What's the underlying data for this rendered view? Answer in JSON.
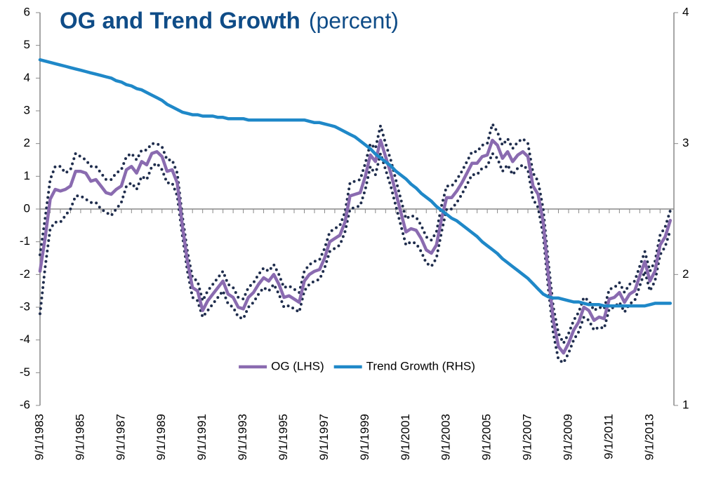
{
  "chart_data": {
    "type": "line",
    "title": "OG and Trend Growth",
    "subtitle": "(percent)",
    "categories": [
      "9/1/1983",
      null,
      null,
      null,
      null,
      null,
      null,
      null,
      "9/1/1985",
      null,
      null,
      null,
      null,
      null,
      null,
      null,
      "9/1/1987",
      null,
      null,
      null,
      null,
      null,
      null,
      null,
      "9/1/1989",
      null,
      null,
      null,
      null,
      null,
      null,
      null,
      "9/1/1991",
      null,
      null,
      null,
      null,
      null,
      null,
      null,
      "9/1/1993",
      null,
      null,
      null,
      null,
      null,
      null,
      null,
      "9/1/1995",
      null,
      null,
      null,
      null,
      null,
      null,
      null,
      "9/1/1997",
      null,
      null,
      null,
      null,
      null,
      null,
      null,
      "9/1/1999",
      null,
      null,
      null,
      null,
      null,
      null,
      null,
      "9/1/2001",
      null,
      null,
      null,
      null,
      null,
      null,
      null,
      "9/1/2003",
      null,
      null,
      null,
      null,
      null,
      null,
      null,
      "9/1/2005",
      null,
      null,
      null,
      null,
      null,
      null,
      null,
      "9/1/2007",
      null,
      null,
      null,
      null,
      null,
      null,
      null,
      "9/1/2009",
      null,
      null,
      null,
      null,
      null,
      null,
      null,
      "9/1/2011",
      null,
      null,
      null,
      null,
      null,
      null,
      null,
      "9/1/2013",
      null,
      null,
      null,
      null
    ],
    "series": [
      {
        "color": "#1f2d4d",
        "style": "dotted",
        "values": [
          -1.4,
          -0.3,
          0.9,
          1.3,
          1.3,
          1.1,
          1.2,
          1.7,
          1.6,
          1.5,
          1.3,
          1.3,
          1.1,
          0.9,
          0.9,
          1.1,
          1.2,
          1.6,
          1.7,
          1.5,
          1.8,
          1.8,
          2.0,
          2.0,
          1.9,
          1.5,
          1.5,
          1.1,
          -0.2,
          -1.3,
          -2.1,
          -2.2,
          -2.8,
          -2.5,
          -2.3,
          -2.1,
          -1.9,
          -2.3,
          -2.4,
          -2.7,
          -2.75,
          -2.4,
          -2.25,
          -2.0,
          -1.8,
          -1.9,
          -1.7,
          -2.0,
          -2.4,
          -2.35,
          -2.45,
          -2.55,
          -1.9,
          -1.7,
          -1.6,
          -1.55,
          -1.2,
          -0.7,
          -0.6,
          -0.5,
          -0.1,
          0.8,
          0.85,
          0.9,
          1.4,
          2.0,
          1.85,
          2.55,
          2.0,
          1.5,
          0.9,
          0.3,
          -0.3,
          -0.2,
          -0.25,
          -0.5,
          -0.85,
          -0.95,
          -0.7,
          0.1,
          0.7,
          0.7,
          0.9,
          1.15,
          1.45,
          1.75,
          1.75,
          1.95,
          2.0,
          2.6,
          2.35,
          1.95,
          2.15,
          1.85,
          2.05,
          2.15,
          2.0,
          1.1,
          0.85,
          0.0,
          -1.6,
          -3.0,
          -3.8,
          -4.1,
          -3.8,
          -3.4,
          -3.15,
          -2.7,
          -2.8,
          -3.1,
          -3.0,
          -3.05,
          -2.45,
          -2.4,
          -2.25,
          -2.55,
          -2.3,
          -2.2,
          -1.75,
          -1.3,
          -1.9,
          -1.6,
          -0.8,
          -0.55,
          -0.05
        ]
      },
      {
        "color": "#1f2d4d",
        "style": "dotted",
        "values": [
          -3.2,
          -1.8,
          -0.6,
          -0.4,
          -0.4,
          -0.2,
          0.0,
          0.4,
          0.4,
          0.3,
          0.2,
          0.2,
          0.0,
          -0.1,
          -0.2,
          0.0,
          0.2,
          0.7,
          0.8,
          0.6,
          1.0,
          0.9,
          1.3,
          1.4,
          1.2,
          0.8,
          0.8,
          0.4,
          -0.8,
          -1.9,
          -2.7,
          -2.8,
          -3.3,
          -3.1,
          -2.9,
          -2.7,
          -2.5,
          -2.9,
          -3.0,
          -3.3,
          -3.35,
          -3.0,
          -2.85,
          -2.6,
          -2.4,
          -2.5,
          -2.3,
          -2.6,
          -3.0,
          -2.95,
          -3.05,
          -3.15,
          -2.5,
          -2.3,
          -2.2,
          -2.15,
          -1.8,
          -1.3,
          -1.2,
          -1.1,
          -0.7,
          0.0,
          0.05,
          0.1,
          0.6,
          1.3,
          1.05,
          1.7,
          1.2,
          0.7,
          0.1,
          -0.5,
          -1.1,
          -1.0,
          -1.05,
          -1.3,
          -1.65,
          -1.75,
          -1.5,
          -0.7,
          0.0,
          0.0,
          0.2,
          0.45,
          0.75,
          1.05,
          1.05,
          1.25,
          1.3,
          1.7,
          1.55,
          1.15,
          1.35,
          1.05,
          1.25,
          1.35,
          1.2,
          0.3,
          0.05,
          -0.8,
          -2.4,
          -3.8,
          -4.6,
          -4.7,
          -4.4,
          -4.0,
          -3.75,
          -3.3,
          -3.4,
          -3.7,
          -3.6,
          -3.65,
          -3.05,
          -3.0,
          -2.85,
          -3.15,
          -2.9,
          -2.8,
          -2.35,
          -1.9,
          -2.5,
          -2.2,
          -1.4,
          -1.15,
          -0.65
        ]
      },
      {
        "name": "OG (LHS)",
        "color": "#8a6bb0",
        "values": [
          -1.9,
          -0.9,
          0.3,
          0.6,
          0.55,
          0.6,
          0.7,
          1.15,
          1.15,
          1.1,
          0.85,
          0.9,
          0.7,
          0.5,
          0.45,
          0.6,
          0.7,
          1.2,
          1.3,
          1.1,
          1.45,
          1.35,
          1.7,
          1.75,
          1.6,
          1.15,
          1.2,
          0.8,
          -0.5,
          -1.6,
          -2.4,
          -2.5,
          -3.1,
          -2.8,
          -2.6,
          -2.4,
          -2.2,
          -2.6,
          -2.7,
          -3.0,
          -3.05,
          -2.7,
          -2.55,
          -2.3,
          -2.1,
          -2.2,
          -2.0,
          -2.3,
          -2.7,
          -2.65,
          -2.75,
          -2.85,
          -2.2,
          -2.0,
          -1.9,
          -1.85,
          -1.5,
          -1.0,
          -0.9,
          -0.8,
          -0.4,
          0.4,
          0.45,
          0.5,
          1.0,
          1.65,
          1.45,
          2.1,
          1.6,
          1.1,
          0.5,
          -0.1,
          -0.7,
          -0.6,
          -0.65,
          -0.9,
          -1.25,
          -1.35,
          -1.1,
          -0.3,
          0.35,
          0.35,
          0.55,
          0.8,
          1.1,
          1.4,
          1.4,
          1.6,
          1.65,
          2.1,
          1.95,
          1.55,
          1.75,
          1.45,
          1.65,
          1.75,
          1.6,
          0.7,
          0.45,
          -0.4,
          -2.0,
          -3.4,
          -4.2,
          -4.4,
          -4.1,
          -3.7,
          -3.45,
          -3.0,
          -3.1,
          -3.4,
          -3.3,
          -3.35,
          -2.75,
          -2.7,
          -2.55,
          -2.85,
          -2.6,
          -2.5,
          -2.05,
          -1.6,
          -2.2,
          -1.9,
          -1.1,
          -0.85,
          -0.35
        ]
      },
      {
        "name": "Trend Growth (RHS)",
        "color": "#1f88c8",
        "axis": "y2",
        "values": [
          3.64,
          3.63,
          3.62,
          3.61,
          3.6,
          3.59,
          3.58,
          3.57,
          3.56,
          3.55,
          3.54,
          3.53,
          3.52,
          3.51,
          3.5,
          3.48,
          3.47,
          3.45,
          3.44,
          3.42,
          3.41,
          3.39,
          3.37,
          3.35,
          3.33,
          3.3,
          3.28,
          3.26,
          3.24,
          3.23,
          3.22,
          3.22,
          3.21,
          3.21,
          3.21,
          3.2,
          3.2,
          3.19,
          3.19,
          3.19,
          3.19,
          3.18,
          3.18,
          3.18,
          3.18,
          3.18,
          3.18,
          3.18,
          3.18,
          3.18,
          3.18,
          3.18,
          3.18,
          3.17,
          3.16,
          3.16,
          3.15,
          3.14,
          3.13,
          3.11,
          3.09,
          3.07,
          3.05,
          3.02,
          2.99,
          2.96,
          2.92,
          2.89,
          2.86,
          2.83,
          2.79,
          2.76,
          2.73,
          2.69,
          2.66,
          2.62,
          2.59,
          2.56,
          2.52,
          2.49,
          2.46,
          2.43,
          2.41,
          2.38,
          2.35,
          2.32,
          2.29,
          2.25,
          2.22,
          2.19,
          2.16,
          2.12,
          2.09,
          2.06,
          2.03,
          2.0,
          1.97,
          1.93,
          1.89,
          1.85,
          1.83,
          1.82,
          1.82,
          1.81,
          1.8,
          1.79,
          1.79,
          1.78,
          1.77,
          1.77,
          1.77,
          1.76,
          1.76,
          1.76,
          1.76,
          1.76,
          1.76,
          1.76,
          1.76,
          1.76,
          1.77,
          1.78,
          1.78,
          1.78,
          1.78
        ]
      }
    ],
    "ylim": [
      -6,
      6
    ],
    "yticks": [
      -6,
      -5,
      -4,
      -3,
      -2,
      -1,
      0,
      1,
      2,
      3,
      4,
      5,
      6
    ],
    "y2lim": [
      1,
      4
    ],
    "y2ticks": [
      1,
      2,
      3,
      4
    ],
    "legend": "bottom",
    "grid": false
  }
}
